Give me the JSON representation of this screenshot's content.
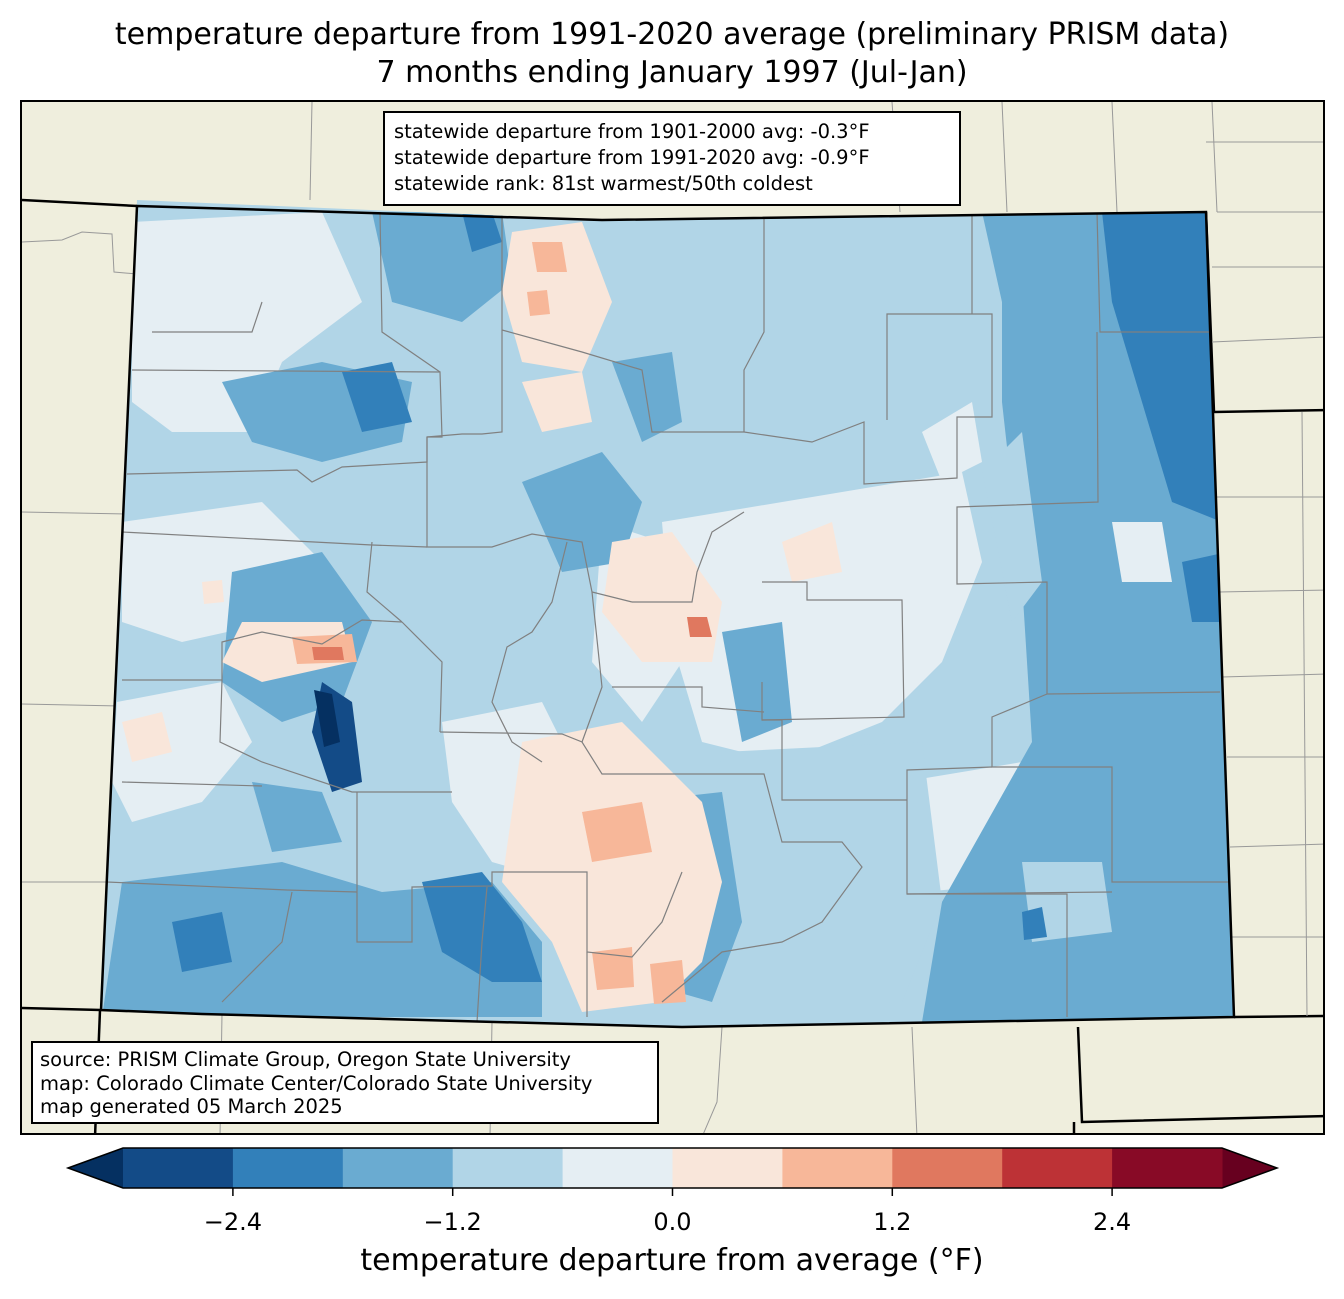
{
  "title": {
    "line1": "temperature departure from 1991-2020 average (preliminary PRISM data)",
    "line2": "7 months ending January 1997 (Jul-Jan)"
  },
  "stats": {
    "line1": "statewide departure from 1901-2000 avg: -0.3°F",
    "line2": "statewide departure from 1991-2020 avg: -0.9°F",
    "line3": "statewide rank: 81st warmest/50th coldest"
  },
  "source": {
    "line1": "source: PRISM Climate Group, Oregon State University",
    "line2": "map: Colorado Climate Center/Colorado State University",
    "line3": "map generated 05 March 2025"
  },
  "colorbar": {
    "label": "temperature departure from average (°F)",
    "min": -3.0,
    "max": 3.0,
    "step": 0.6,
    "ticks": [
      "−2.4",
      "−1.2",
      "0.0",
      "1.2",
      "2.4"
    ],
    "tick_values": [
      -2.4,
      -1.2,
      0.0,
      1.2,
      2.4
    ],
    "under_color": "#053061",
    "over_color": "#67001f",
    "colors": [
      "#134b87",
      "#3280ba",
      "#6aabd1",
      "#b1d5e7",
      "#e5eef3",
      "#f9e6da",
      "#f7b799",
      "#e0785f",
      "#bd3236",
      "#880a26"
    ]
  },
  "colors": {
    "land_outside": "#efeedd",
    "boundaries": "#808080",
    "state_border": "#000000"
  }
}
